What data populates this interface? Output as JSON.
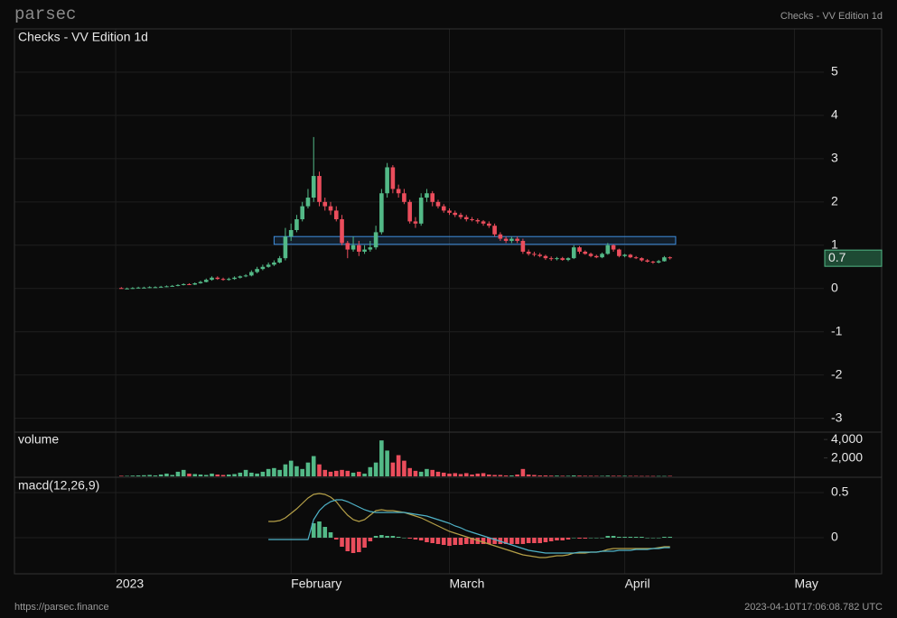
{
  "header": {
    "logo": "parsec",
    "chart_name": "Checks - VV Edition 1d"
  },
  "footer": {
    "url": "https://parsec.finance",
    "timestamp": "2023-04-10T17:06:08.782 UTC"
  },
  "chart_data": {
    "type": "candlestick",
    "title": "Checks - VV Edition 1d",
    "x": [
      1,
      2,
      3,
      4,
      5,
      6,
      7,
      8,
      9,
      10,
      11,
      12,
      13,
      14,
      15,
      16,
      17,
      18,
      19,
      20,
      21,
      22,
      23,
      24,
      25,
      26,
      27,
      28,
      29,
      30,
      31,
      32,
      33,
      34,
      35,
      36,
      37,
      38,
      39,
      40,
      41,
      42,
      43,
      44,
      45,
      46,
      47,
      48,
      49,
      50,
      51,
      52,
      53,
      54,
      55,
      56,
      57,
      58,
      59,
      60,
      61,
      62,
      63,
      64,
      65,
      66,
      67,
      68,
      69,
      70,
      71,
      72,
      73,
      74,
      75,
      76,
      77,
      78,
      79,
      80,
      81,
      82,
      83,
      84,
      85,
      86,
      87,
      88,
      89,
      90,
      91,
      92,
      93,
      94,
      95,
      96,
      97,
      98
    ],
    "xlim": [
      -17.9,
      125.2
    ],
    "xticks": [
      {
        "value": 0,
        "label": "2023"
      },
      {
        "value": 31,
        "label": "February"
      },
      {
        "value": 59,
        "label": "March"
      },
      {
        "value": 90,
        "label": "April"
      },
      {
        "value": 120,
        "label": "May"
      }
    ],
    "ylim": [
      -3.3,
      6.0
    ],
    "yticks": [
      -3,
      -2,
      -1,
      0,
      1,
      2,
      3,
      4,
      5
    ],
    "grid": true,
    "up_color": "#53b987",
    "down_color": "#eb4d5c",
    "open": [
      0.01,
      0.0,
      0.0,
      0.01,
      0.02,
      0.02,
      0.03,
      0.03,
      0.04,
      0.05,
      0.06,
      0.08,
      0.1,
      0.09,
      0.12,
      0.15,
      0.2,
      0.25,
      0.22,
      0.2,
      0.22,
      0.25,
      0.28,
      0.3,
      0.38,
      0.45,
      0.5,
      0.55,
      0.6,
      0.7,
      1.2,
      1.35,
      1.6,
      1.9,
      2.1,
      2.6,
      2.0,
      1.9,
      1.8,
      1.6,
      1.05,
      0.9,
      1.0,
      0.85,
      0.9,
      0.95,
      1.3,
      2.2,
      2.8,
      2.3,
      2.2,
      2.0,
      1.55,
      1.5,
      2.1,
      2.2,
      2.0,
      1.9,
      1.8,
      1.75,
      1.7,
      1.65,
      1.6,
      1.58,
      1.55,
      1.5,
      1.45,
      1.25,
      1.15,
      1.1,
      1.15,
      1.1,
      0.85,
      0.8,
      0.78,
      0.75,
      0.7,
      0.68,
      0.7,
      0.66,
      0.7,
      0.95,
      0.85,
      0.8,
      0.75,
      0.72,
      0.8,
      1.0,
      0.9,
      0.75,
      0.78,
      0.72,
      0.7,
      0.65,
      0.62,
      0.6,
      0.63,
      0.72
    ],
    "high": [
      0.03,
      0.02,
      0.03,
      0.04,
      0.04,
      0.05,
      0.05,
      0.06,
      0.07,
      0.08,
      0.1,
      0.12,
      0.12,
      0.14,
      0.18,
      0.23,
      0.28,
      0.28,
      0.25,
      0.25,
      0.28,
      0.3,
      0.33,
      0.42,
      0.5,
      0.55,
      0.6,
      0.65,
      0.75,
      1.4,
      1.5,
      1.7,
      2.0,
      2.3,
      3.5,
      2.7,
      2.1,
      2.0,
      1.9,
      1.7,
      1.1,
      1.2,
      1.1,
      1.0,
      1.1,
      1.45,
      2.3,
      2.9,
      2.85,
      2.4,
      2.3,
      2.05,
      1.65,
      2.2,
      2.3,
      2.25,
      2.05,
      1.95,
      1.85,
      1.8,
      1.75,
      1.7,
      1.65,
      1.62,
      1.58,
      1.55,
      1.5,
      1.3,
      1.2,
      1.2,
      1.2,
      1.15,
      0.9,
      0.85,
      0.82,
      0.78,
      0.74,
      0.73,
      0.73,
      0.72,
      1.0,
      0.98,
      0.88,
      0.83,
      0.78,
      0.83,
      1.05,
      1.02,
      0.92,
      0.8,
      0.8,
      0.75,
      0.72,
      0.68,
      0.64,
      0.66,
      0.75,
      0.74
    ],
    "low": [
      0.0,
      -0.01,
      -0.01,
      0.0,
      0.01,
      0.01,
      0.02,
      0.02,
      0.03,
      0.04,
      0.05,
      0.07,
      0.08,
      0.08,
      0.11,
      0.14,
      0.18,
      0.2,
      0.18,
      0.18,
      0.2,
      0.23,
      0.26,
      0.28,
      0.35,
      0.42,
      0.48,
      0.52,
      0.58,
      0.65,
      1.1,
      1.3,
      1.55,
      1.85,
      2.0,
      1.9,
      1.8,
      1.7,
      1.55,
      1.0,
      0.7,
      0.85,
      0.75,
      0.8,
      0.85,
      0.9,
      1.25,
      2.1,
      2.2,
      2.1,
      1.95,
      1.5,
      1.4,
      1.45,
      2.0,
      1.9,
      1.85,
      1.75,
      1.7,
      1.65,
      1.6,
      1.55,
      1.55,
      1.5,
      1.45,
      1.4,
      1.2,
      1.1,
      1.05,
      1.05,
      1.05,
      0.8,
      0.76,
      0.74,
      0.72,
      0.66,
      0.64,
      0.65,
      0.64,
      0.63,
      0.68,
      0.8,
      0.78,
      0.72,
      0.7,
      0.7,
      0.78,
      0.85,
      0.72,
      0.72,
      0.7,
      0.68,
      0.62,
      0.6,
      0.57,
      0.58,
      0.62,
      0.67
    ],
    "close": [
      0.0,
      0.0,
      0.01,
      0.02,
      0.02,
      0.03,
      0.03,
      0.04,
      0.05,
      0.06,
      0.08,
      0.1,
      0.09,
      0.12,
      0.15,
      0.2,
      0.25,
      0.22,
      0.2,
      0.22,
      0.25,
      0.28,
      0.3,
      0.38,
      0.45,
      0.5,
      0.55,
      0.6,
      0.7,
      1.2,
      1.35,
      1.6,
      1.9,
      2.1,
      2.6,
      2.0,
      1.9,
      1.8,
      1.6,
      1.05,
      0.9,
      1.0,
      0.85,
      0.9,
      0.95,
      1.3,
      2.2,
      2.8,
      2.3,
      2.2,
      2.0,
      1.55,
      1.5,
      2.1,
      2.2,
      2.0,
      1.9,
      1.8,
      1.75,
      1.7,
      1.65,
      1.6,
      1.58,
      1.55,
      1.5,
      1.45,
      1.25,
      1.15,
      1.1,
      1.15,
      1.1,
      0.85,
      0.8,
      0.78,
      0.75,
      0.7,
      0.68,
      0.7,
      0.66,
      0.7,
      0.95,
      0.85,
      0.8,
      0.75,
      0.72,
      0.8,
      1.0,
      0.9,
      0.75,
      0.78,
      0.72,
      0.7,
      0.65,
      0.62,
      0.6,
      0.63,
      0.72,
      0.7
    ],
    "price_tag": 0.7,
    "zone": {
      "x0": 28,
      "x1": 99,
      "low": 1.02,
      "high": 1.2,
      "color": "#3f8fe0"
    },
    "volume": {
      "name": "volume",
      "ylim": [
        0,
        4700
      ],
      "yticks": [
        {
          "value": 4000,
          "label": "4,000"
        },
        {
          "value": 2000,
          "label": "2,000"
        }
      ],
      "values": [
        60,
        50,
        80,
        100,
        120,
        150,
        100,
        200,
        300,
        150,
        500,
        700,
        300,
        250,
        200,
        150,
        300,
        200,
        150,
        200,
        250,
        400,
        700,
        400,
        300,
        500,
        800,
        900,
        700,
        1300,
        1700,
        1100,
        800,
        1500,
        2200,
        1300,
        700,
        500,
        600,
        700,
        600,
        400,
        500,
        300,
        1000,
        1500,
        3900,
        2800,
        1500,
        2300,
        1700,
        900,
        600,
        500,
        800,
        700,
        500,
        400,
        300,
        350,
        250,
        350,
        200,
        300,
        350,
        200,
        150,
        150,
        100,
        100,
        200,
        800,
        200,
        150,
        100,
        100,
        80,
        80,
        60,
        60,
        100,
        80,
        60,
        60,
        50,
        50,
        80,
        60,
        60,
        60,
        50,
        50,
        40,
        40,
        40,
        40,
        40,
        50
      ]
    },
    "macd": {
      "name": "macd(12,26,9)",
      "ylim": [
        -0.4,
        0.66
      ],
      "yticks": [
        0.5,
        0
      ],
      "macd_line": {
        "color": "#b5a048",
        "values": [
          null,
          null,
          null,
          null,
          null,
          null,
          null,
          null,
          null,
          null,
          null,
          null,
          null,
          null,
          null,
          null,
          null,
          null,
          null,
          null,
          null,
          null,
          null,
          null,
          null,
          null,
          0.18,
          0.18,
          0.19,
          0.22,
          0.27,
          0.32,
          0.38,
          0.44,
          0.48,
          0.49,
          0.48,
          0.45,
          0.4,
          0.32,
          0.25,
          0.2,
          0.18,
          0.2,
          0.25,
          0.3,
          0.31,
          0.3,
          0.3,
          0.29,
          0.28,
          0.26,
          0.24,
          0.22,
          0.19,
          0.16,
          0.13,
          0.1,
          0.07,
          0.05,
          0.03,
          0.01,
          -0.01,
          -0.03,
          -0.05,
          -0.07,
          -0.09,
          -0.11,
          -0.13,
          -0.15,
          -0.17,
          -0.19,
          -0.2,
          -0.21,
          -0.22,
          -0.22,
          -0.21,
          -0.2,
          -0.2,
          -0.19,
          -0.17,
          -0.17,
          -0.17,
          -0.16,
          -0.16,
          -0.15,
          -0.13,
          -0.12,
          -0.12,
          -0.12,
          -0.12,
          -0.12,
          -0.12,
          -0.12,
          -0.12,
          -0.11,
          -0.1,
          -0.1
        ]
      },
      "signal_line": {
        "color": "#4fb3c8",
        "values": [
          null,
          null,
          null,
          null,
          null,
          null,
          null,
          null,
          null,
          null,
          null,
          null,
          null,
          null,
          null,
          null,
          null,
          null,
          null,
          null,
          null,
          null,
          null,
          null,
          null,
          null,
          -0.02,
          -0.02,
          -0.02,
          -0.02,
          -0.02,
          -0.02,
          -0.02,
          -0.02,
          0.2,
          0.3,
          0.36,
          0.4,
          0.42,
          0.42,
          0.4,
          0.37,
          0.34,
          0.31,
          0.29,
          0.28,
          0.28,
          0.28,
          0.28,
          0.28,
          0.28,
          0.27,
          0.26,
          0.25,
          0.24,
          0.22,
          0.2,
          0.18,
          0.16,
          0.13,
          0.11,
          0.08,
          0.06,
          0.04,
          0.02,
          0.0,
          -0.02,
          -0.04,
          -0.06,
          -0.08,
          -0.1,
          -0.12,
          -0.14,
          -0.15,
          -0.16,
          -0.17,
          -0.17,
          -0.17,
          -0.17,
          -0.17,
          -0.17,
          -0.16,
          -0.16,
          -0.16,
          -0.16,
          -0.15,
          -0.15,
          -0.15,
          -0.14,
          -0.14,
          -0.14,
          -0.13,
          -0.13,
          -0.13,
          -0.12,
          -0.12,
          -0.11,
          -0.11
        ]
      },
      "histogram": {
        "values": [
          null,
          null,
          null,
          null,
          null,
          null,
          null,
          null,
          null,
          null,
          null,
          null,
          null,
          null,
          null,
          null,
          null,
          null,
          null,
          null,
          null,
          null,
          null,
          null,
          null,
          null,
          null,
          null,
          null,
          null,
          null,
          null,
          null,
          null,
          0.16,
          0.18,
          0.12,
          0.06,
          -0.02,
          -0.1,
          -0.15,
          -0.17,
          -0.16,
          -0.11,
          -0.04,
          0.02,
          0.03,
          0.02,
          0.02,
          0.01,
          0.0,
          -0.01,
          -0.02,
          -0.03,
          -0.05,
          -0.06,
          -0.07,
          -0.08,
          -0.09,
          -0.08,
          -0.08,
          -0.07,
          -0.07,
          -0.07,
          -0.07,
          -0.07,
          -0.07,
          -0.07,
          -0.07,
          -0.07,
          -0.07,
          -0.07,
          -0.06,
          -0.06,
          -0.06,
          -0.05,
          -0.04,
          -0.03,
          -0.03,
          -0.02,
          0.0,
          -0.01,
          -0.01,
          0.0,
          0.0,
          0.0,
          0.02,
          0.02,
          0.01,
          0.01,
          0.01,
          0.01,
          0.01,
          0.0,
          0.0,
          0.0,
          0.01,
          0.01
        ]
      }
    }
  }
}
